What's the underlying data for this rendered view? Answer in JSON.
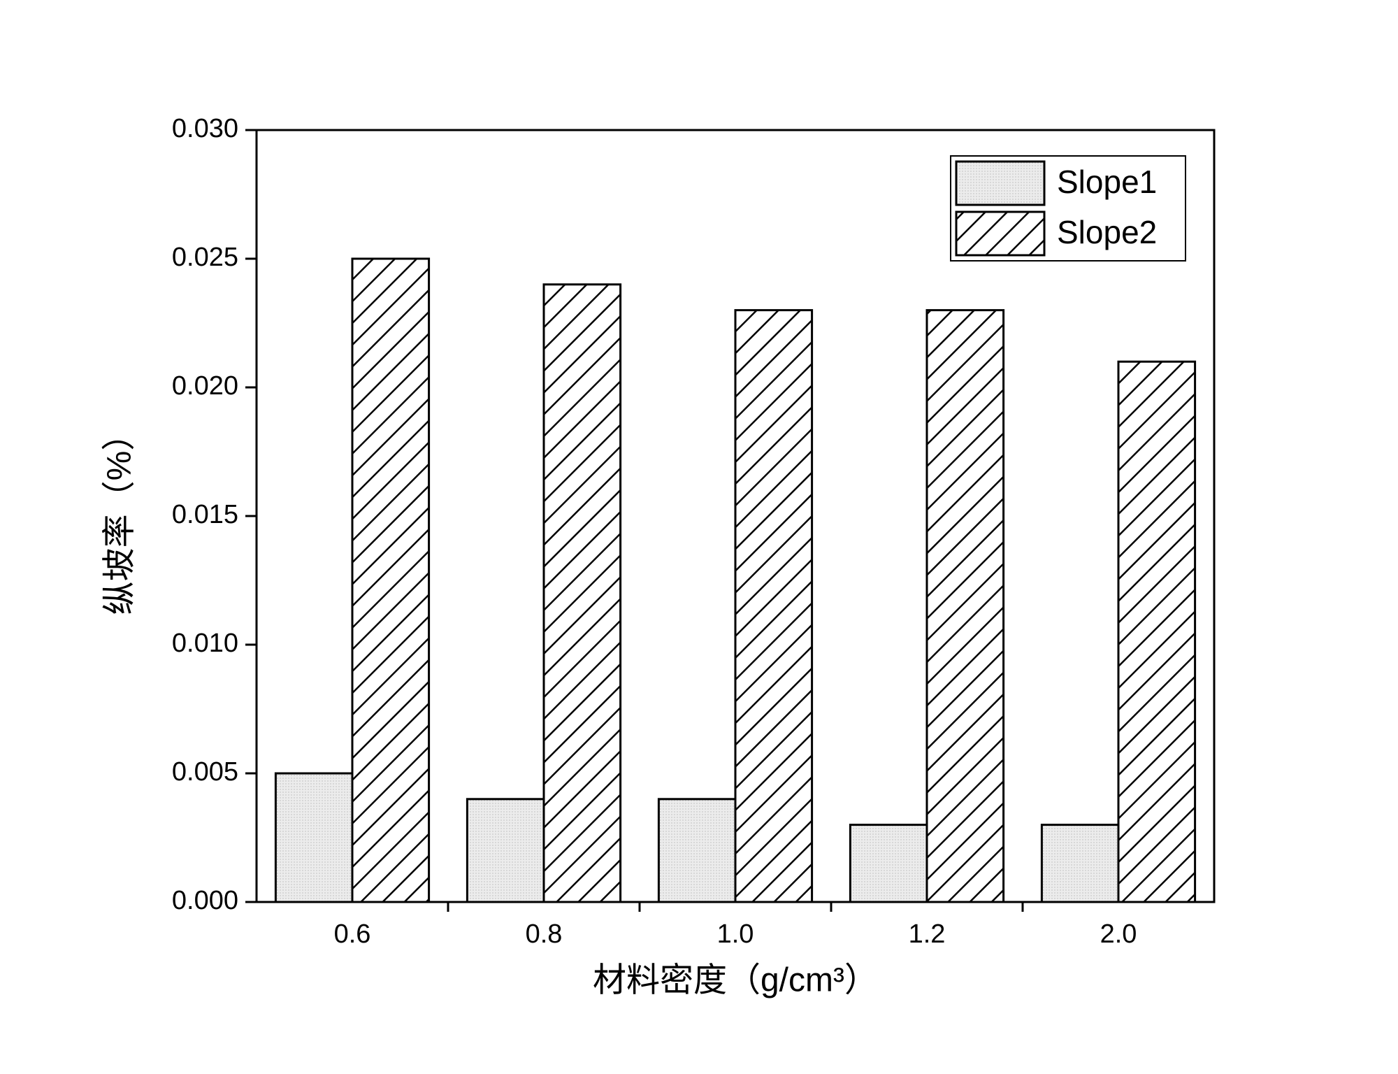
{
  "chart_data": {
    "type": "bar",
    "xlabel": "材料密度（g/cm³）",
    "ylabel": "纵坡率（%）",
    "categories": [
      "0.6",
      "0.8",
      "1.0",
      "1.2",
      "2.0"
    ],
    "series": [
      {
        "name": "Slope1",
        "color": "#e6e6e6",
        "pattern": "dots",
        "values": [
          0.005,
          0.004,
          0.004,
          0.003,
          0.003
        ]
      },
      {
        "name": "Slope2",
        "color": "#ffffff",
        "pattern": "hatch",
        "values": [
          0.025,
          0.024,
          0.023,
          0.023,
          0.021
        ]
      }
    ],
    "ylim": [
      0,
      0.03
    ],
    "yticks": [
      {
        "value": 0,
        "label": "0.000"
      },
      {
        "value": 0.005,
        "label": "0.005"
      },
      {
        "value": 0.01,
        "label": "0.010"
      },
      {
        "value": 0.015,
        "label": "0.015"
      },
      {
        "value": 0.02,
        "label": "0.020"
      },
      {
        "value": 0.025,
        "label": "0.025"
      },
      {
        "value": 0.03,
        "label": "0.030"
      }
    ],
    "legend": "upper-right"
  }
}
